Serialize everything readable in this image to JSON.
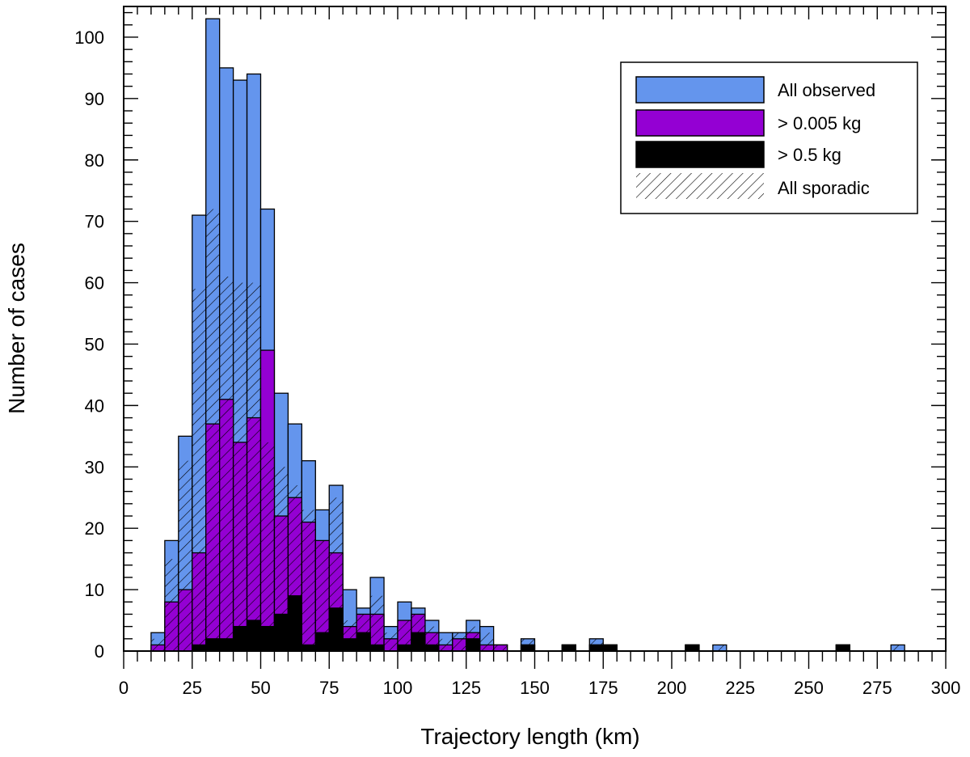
{
  "chart_data": {
    "type": "bar",
    "xlabel": "Trajectory length (km)",
    "ylabel": "Number of cases",
    "xlim": [
      0,
      300
    ],
    "ylim": [
      0,
      105
    ],
    "x_ticks": [
      0,
      25,
      50,
      75,
      100,
      125,
      150,
      175,
      200,
      225,
      250,
      275,
      300
    ],
    "y_ticks": [
      0,
      10,
      20,
      30,
      40,
      50,
      60,
      70,
      80,
      90,
      100
    ],
    "bin_width": 5,
    "bins_start": [
      10,
      15,
      20,
      25,
      30,
      35,
      40,
      45,
      50,
      55,
      60,
      65,
      70,
      75,
      80,
      85,
      90,
      95,
      100,
      105,
      110,
      115,
      120,
      125,
      130,
      135,
      140,
      145,
      150,
      155,
      160,
      165,
      170,
      175,
      180,
      185,
      190,
      195,
      200,
      205,
      210,
      215,
      220,
      225,
      230,
      235,
      240,
      245,
      250,
      255,
      260,
      265,
      270,
      275,
      280
    ],
    "series": [
      {
        "name": "All observed",
        "color": "#6495ed",
        "values": [
          3,
          18,
          35,
          71,
          103,
          95,
          93,
          94,
          72,
          42,
          37,
          31,
          23,
          27,
          10,
          7,
          12,
          4,
          8,
          7,
          5,
          3,
          3,
          5,
          4,
          1,
          0,
          2,
          0,
          0,
          1,
          0,
          2,
          1,
          0,
          0,
          0,
          0,
          0,
          1,
          0,
          1,
          0,
          0,
          0,
          0,
          0,
          0,
          0,
          0,
          1,
          0,
          0,
          0,
          1
        ]
      },
      {
        "name": "> 0.005 kg",
        "color": "#9400d3",
        "values": [
          1,
          8,
          10,
          16,
          37,
          41,
          34,
          38,
          49,
          22,
          25,
          21,
          18,
          16,
          4,
          6,
          6,
          2,
          5,
          6,
          3,
          1,
          2,
          3,
          1,
          1,
          0,
          1,
          0,
          0,
          1,
          0,
          1,
          1,
          0,
          0,
          0,
          0,
          0,
          1,
          0,
          0,
          0,
          0,
          0,
          0,
          0,
          0,
          0,
          0,
          1,
          0,
          0,
          0,
          0
        ]
      },
      {
        "name": "> 0.5 kg",
        "color": "#000000",
        "values": [
          0,
          0,
          0,
          1,
          2,
          2,
          4,
          5,
          4,
          6,
          9,
          1,
          3,
          7,
          2,
          3,
          1,
          0,
          1,
          3,
          1,
          0,
          0,
          2,
          0,
          0,
          0,
          1,
          0,
          0,
          1,
          0,
          1,
          1,
          0,
          0,
          0,
          0,
          0,
          1,
          0,
          0,
          0,
          0,
          0,
          0,
          0,
          0,
          0,
          0,
          1,
          0,
          0,
          0,
          0
        ]
      },
      {
        "name": "All sporadic",
        "color": "#000000",
        "fill": "hatched",
        "values": [
          2,
          15,
          31,
          59,
          72,
          61,
          60,
          60,
          34,
          30,
          27,
          23,
          18,
          25,
          5,
          6,
          9,
          3,
          5,
          6,
          4,
          2,
          3,
          4,
          3,
          1,
          0,
          2,
          0,
          0,
          1,
          0,
          2,
          1,
          0,
          0,
          0,
          0,
          0,
          1,
          0,
          1,
          0,
          0,
          0,
          0,
          0,
          0,
          0,
          0,
          1,
          0,
          0,
          0,
          1
        ]
      }
    ],
    "legend_position": "top-right",
    "grid": false
  }
}
